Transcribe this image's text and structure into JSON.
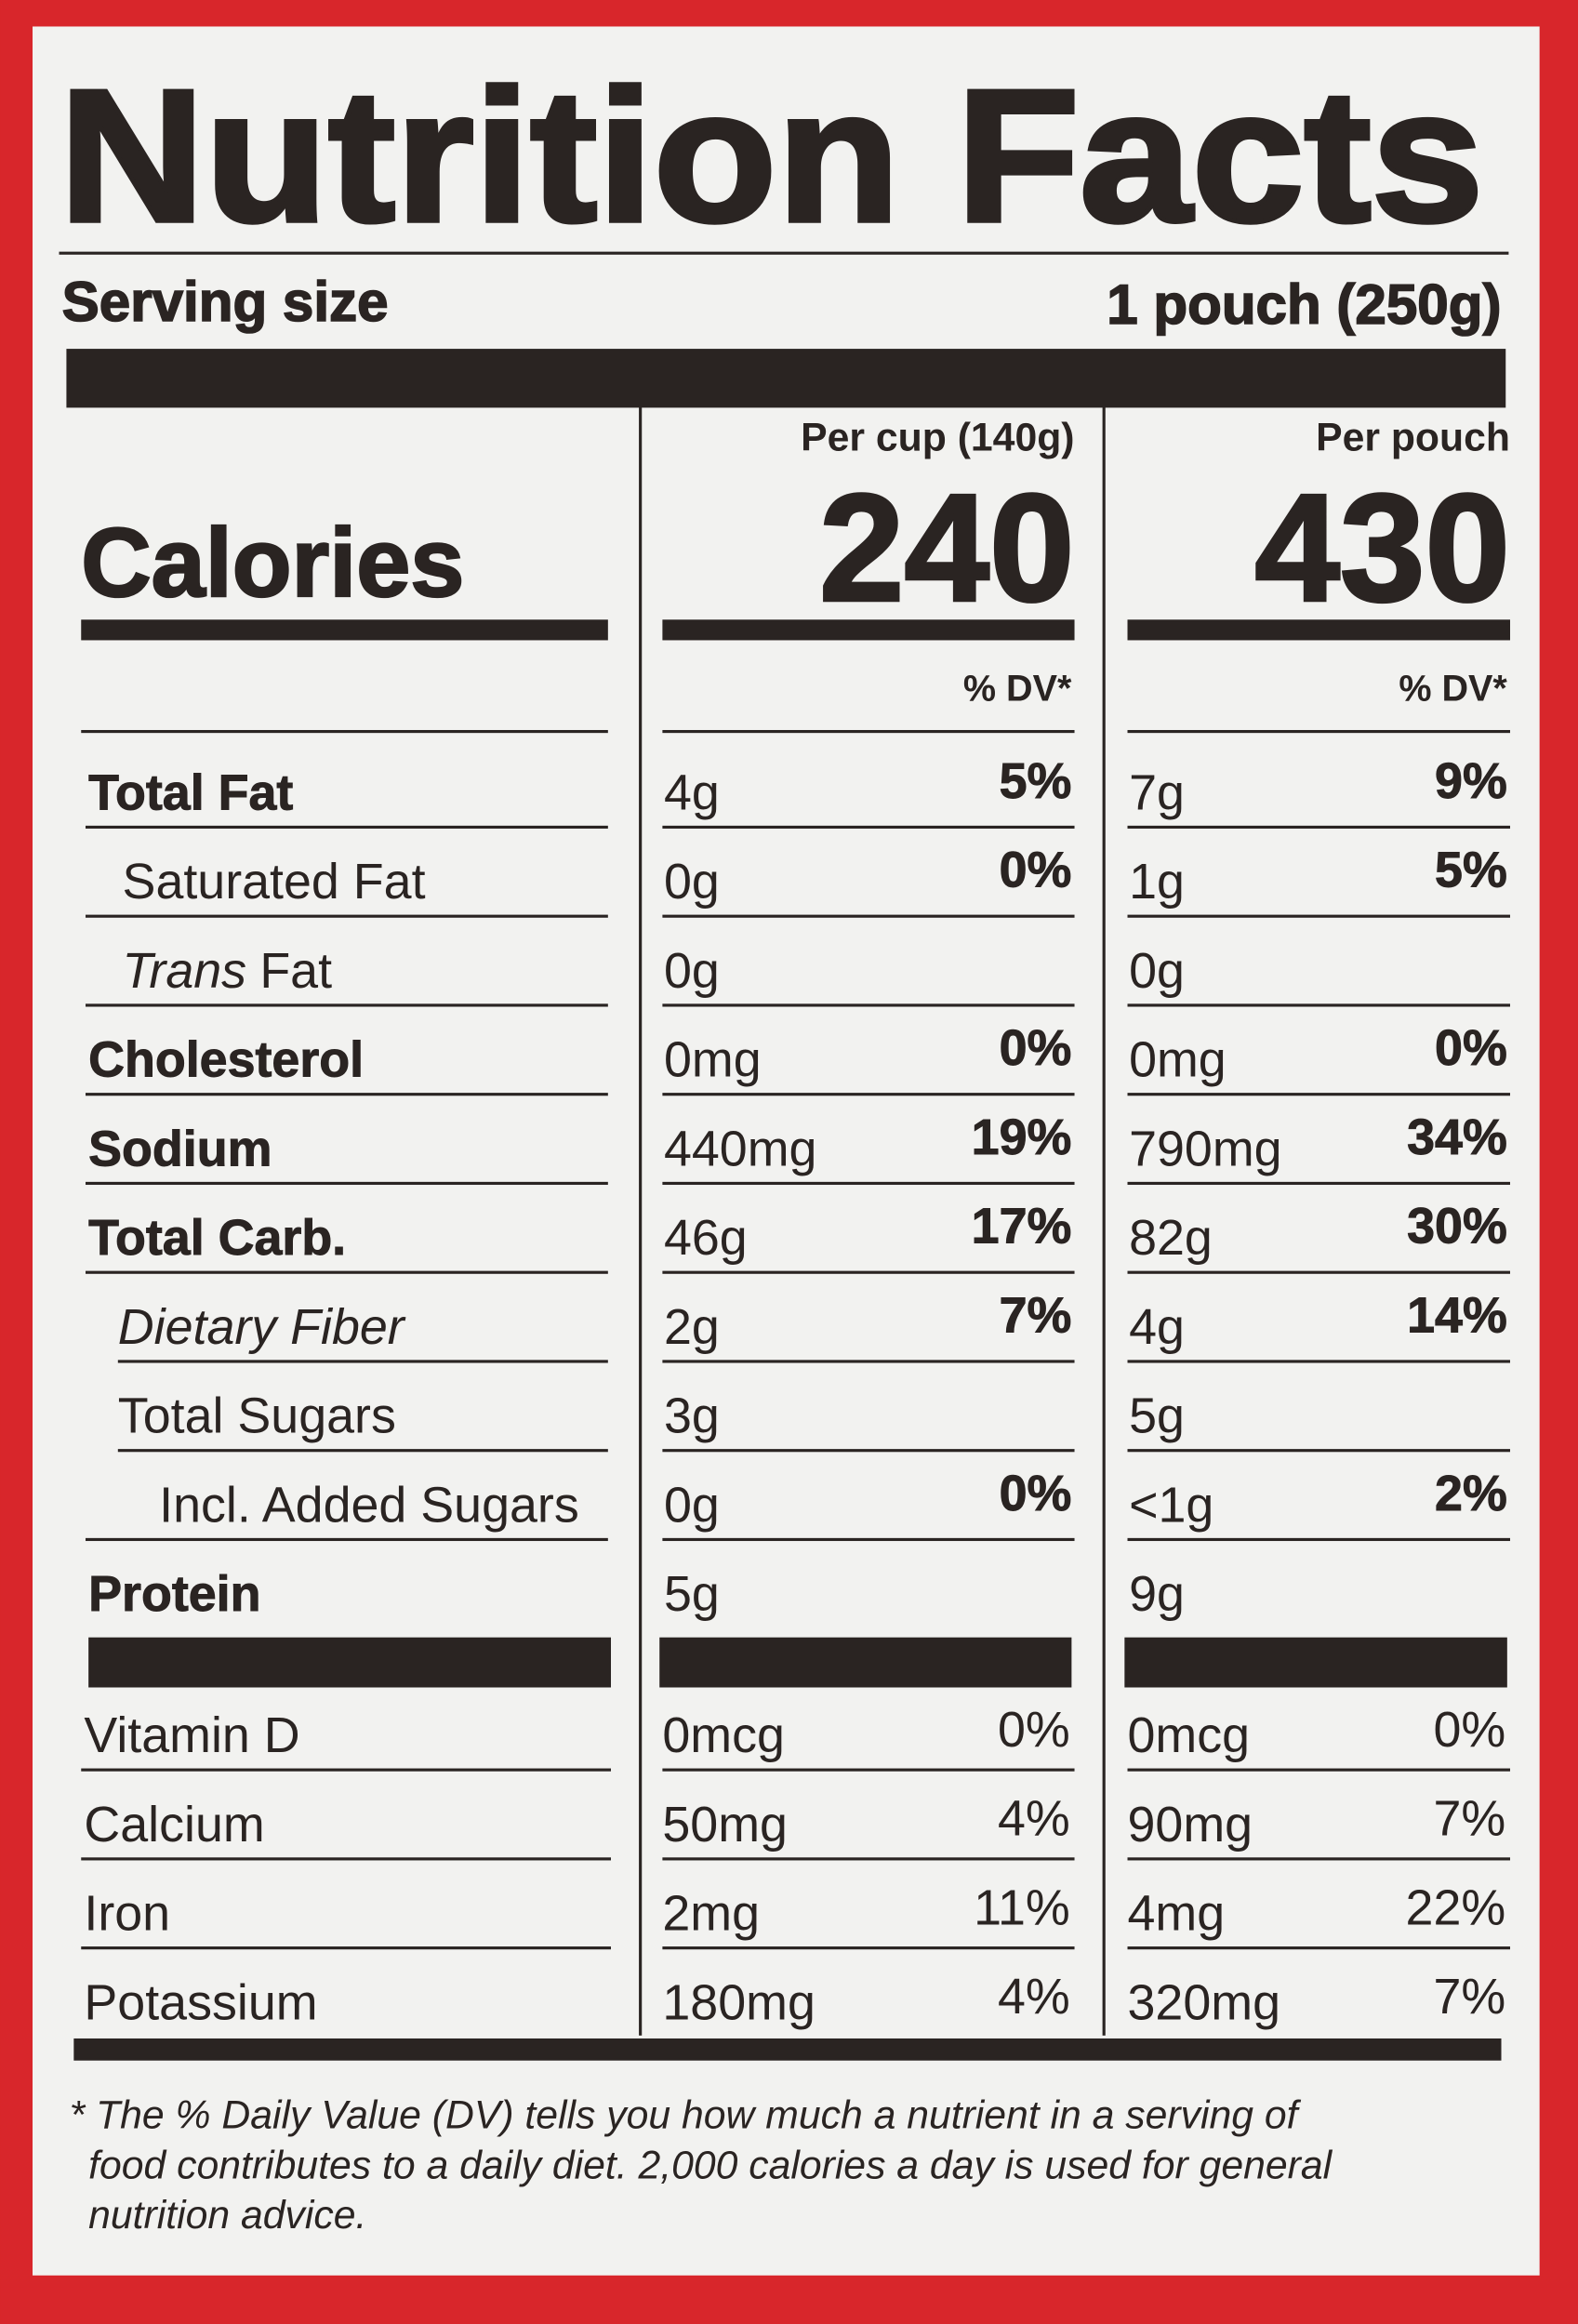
{
  "title": "Nutrition Facts",
  "serving": {
    "label": "Serving size",
    "value": "1 pouch (250g)"
  },
  "calories_label": "Calories",
  "columns": [
    {
      "header": "Per cup (140g)",
      "calories": 240,
      "dv_header": "% DV*"
    },
    {
      "header": "Per pouch",
      "calories": 430,
      "dv_header": "% DV*"
    }
  ],
  "rows": [
    {
      "name": "Total Fat",
      "cup": [
        "4g",
        "5%"
      ],
      "pouch": [
        "7g",
        "9%"
      ]
    },
    {
      "name": "Saturated Fat",
      "cup": [
        "0g",
        "0%"
      ],
      "pouch": [
        "1g",
        "5%"
      ]
    },
    {
      "name_italic": "Trans",
      "name": "Fat",
      "cup": [
        "0g"
      ],
      "pouch": [
        "0g"
      ]
    },
    {
      "name": "Cholesterol",
      "cup": [
        "0mg",
        "0%"
      ],
      "pouch": [
        "0mg",
        "0%"
      ]
    },
    {
      "name": "Sodium",
      "cup": [
        "440mg",
        "19%"
      ],
      "pouch": [
        "790mg",
        "34%"
      ]
    },
    {
      "name": "Total Carb.",
      "cup": [
        "46g",
        "17%"
      ],
      "pouch": [
        "82g",
        "30%"
      ]
    },
    {
      "name": "Dietary Fiber",
      "cup": [
        "2g",
        "7%"
      ],
      "pouch": [
        "4g",
        "14%"
      ]
    },
    {
      "name": "Total Sugars",
      "cup": [
        "3g"
      ],
      "pouch": [
        "5g"
      ]
    },
    {
      "name": "Incl. Added Sugars",
      "cup": [
        "0g",
        "0%"
      ],
      "pouch": [
        "<1g",
        "2%"
      ]
    },
    {
      "name": "Protein",
      "cup": [
        "5g"
      ],
      "pouch": [
        "9g"
      ]
    }
  ],
  "vitamins": [
    {
      "name": "Vitamin D",
      "cup": [
        "0mcg",
        "0%"
      ],
      "pouch": [
        "0mcg",
        "0%"
      ]
    },
    {
      "name": "Calcium",
      "cup": [
        "50mg",
        "4%"
      ],
      "pouch": [
        "90mg",
        "7%"
      ]
    },
    {
      "name": "Iron",
      "cup": [
        "2mg",
        "11%"
      ],
      "pouch": [
        "4mg",
        "22%"
      ]
    },
    {
      "name": "Potassium",
      "cup": [
        "180mg",
        "4%"
      ],
      "pouch": [
        "320mg",
        "7%"
      ]
    }
  ],
  "footnote": [
    "* The % Daily Value (DV) tells you how much a nutrient in a serving of",
    "food contributes to a daily diet. 2,000 calories a day is used for general",
    "nutrition advice."
  ]
}
